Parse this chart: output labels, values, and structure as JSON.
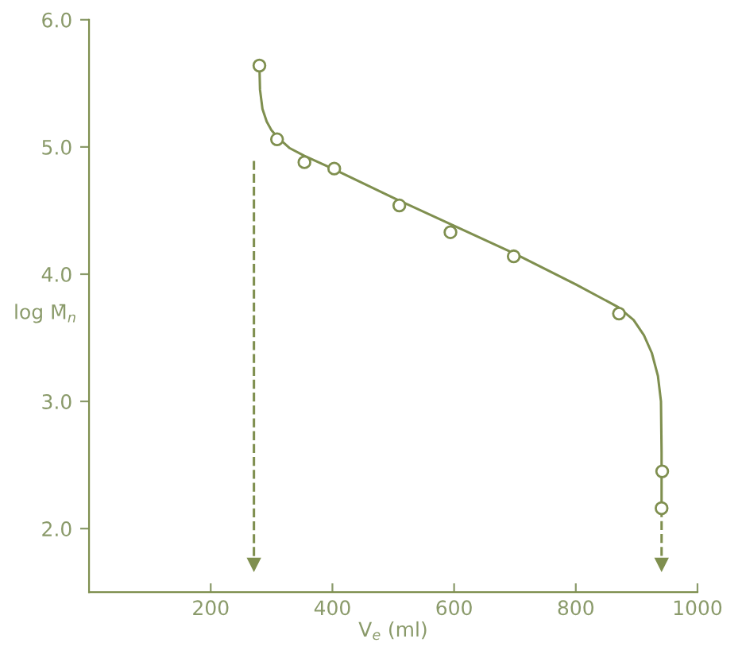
{
  "chart_data": {
    "type": "scatter",
    "xlabel": "V$_{e}$ (ml)",
    "ylabel": "log M̄$_{n}$",
    "xlim": [
      0,
      1000
    ],
    "ylim": [
      1.5,
      6.0
    ],
    "xticks": [
      200,
      400,
      600,
      800,
      1000
    ],
    "yticks": [
      {
        "value": 2.0,
        "label": "2.0"
      },
      {
        "value": 3.0,
        "label": "3.0"
      },
      {
        "value": 4.0,
        "label": "4.0"
      },
      {
        "value": 5.0,
        "label": "5.0"
      },
      {
        "value": 6.0,
        "label": "6.0"
      }
    ],
    "grid": false,
    "legend": false,
    "series": [
      {
        "marker": "circle",
        "color": "#7f8f4f",
        "x": [
          280,
          309,
          354,
          403,
          510,
          594,
          698,
          871,
          942,
          941
        ],
        "values": [
          5.64,
          5.06,
          4.88,
          4.83,
          4.54,
          4.33,
          4.14,
          3.69,
          2.45,
          2.16
        ]
      },
      {
        "type": "line",
        "marker": "none",
        "line_style": "solid",
        "color": "#7f8f4f",
        "x": [
          280,
          281,
          285,
          292,
          300,
          309,
          330,
          354,
          400,
          500,
          600,
          700,
          800,
          870,
          895,
          912,
          925,
          935,
          940,
          941,
          941
        ],
        "values": [
          5.64,
          5.45,
          5.3,
          5.2,
          5.13,
          5.08,
          4.99,
          4.93,
          4.83,
          4.6,
          4.38,
          4.16,
          3.92,
          3.74,
          3.64,
          3.52,
          3.38,
          3.2,
          3.0,
          2.6,
          2.16
        ]
      },
      {
        "type": "line",
        "marker": "triangle",
        "line_style": "dashed",
        "color": "#7f8f4f",
        "x": [
          271,
          271
        ],
        "values": [
          4.89,
          1.72
        ]
      },
      {
        "type": "line",
        "marker": "triangle",
        "line_style": "dashed",
        "color": "#7f8f4f",
        "x": [
          941,
          941
        ],
        "values": [
          2.16,
          1.72
        ]
      }
    ]
  }
}
